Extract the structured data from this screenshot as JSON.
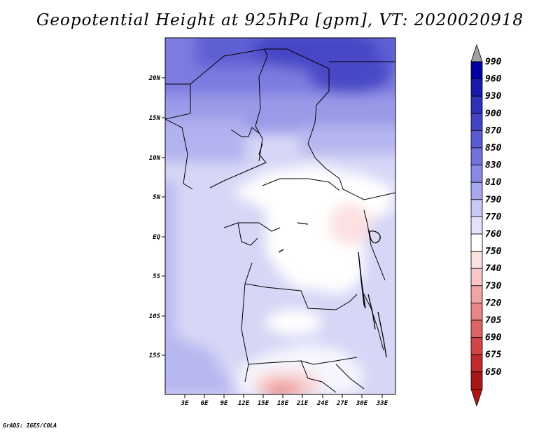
{
  "title": "Geopotential Height at 925hPa [gpm], VT: 2020020918",
  "credit": "GrADS: IGES/COLA",
  "lat_ticks": [
    "20N",
    "15N",
    "10N",
    "5N",
    "EQ",
    "5S",
    "10S",
    "15S"
  ],
  "lon_ticks": [
    "3E",
    "6E",
    "9E",
    "12E",
    "15E",
    "18E",
    "21E",
    "24E",
    "27E",
    "30E",
    "33E"
  ],
  "colorbar": {
    "levels": [
      {
        "label": "990",
        "color": "#0000a0"
      },
      {
        "label": "960",
        "color": "#1a1aaa"
      },
      {
        "label": "930",
        "color": "#3030b8"
      },
      {
        "label": "900",
        "color": "#4444c4"
      },
      {
        "label": "870",
        "color": "#5a5ad2"
      },
      {
        "label": "850",
        "color": "#7272dc"
      },
      {
        "label": "830",
        "color": "#8a8ae6"
      },
      {
        "label": "810",
        "color": "#a8a8ee"
      },
      {
        "label": "790",
        "color": "#c8c8f4"
      },
      {
        "label": "770",
        "color": "#e2e2fa"
      },
      {
        "label": "760",
        "color": "#ffffff"
      },
      {
        "label": "750",
        "color": "#fde2e2"
      },
      {
        "label": "740",
        "color": "#f8c6c6"
      },
      {
        "label": "730",
        "color": "#f0a4a4"
      },
      {
        "label": "720",
        "color": "#e88686"
      },
      {
        "label": "705",
        "color": "#de6464"
      },
      {
        "label": "690",
        "color": "#d04646"
      },
      {
        "label": "675",
        "color": "#c02c2c"
      },
      {
        "label": "650",
        "color": "#a81818"
      }
    ],
    "top_arrow_color": "#a0a0a0",
    "bottom_arrow_color": "#b01414"
  }
}
